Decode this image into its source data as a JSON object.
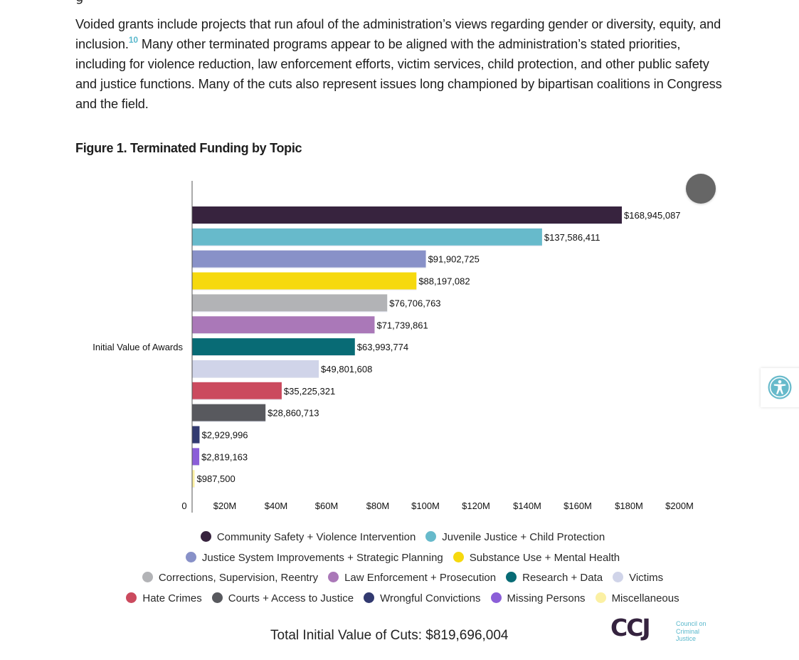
{
  "article": {
    "prev_text_fragment": "g",
    "paragraph_part1": "Voided grants include projects that run afoul of the administration’s views regarding gender or diversity, equity, and inclusion.",
    "footnote": "10",
    "paragraph_part2": " Many other terminated programs appear to be aligned with the administration’s stated priorities, including for violence reduction, law enforcement efforts, victim services, child protection, and other public safety and justice functions. Many of the cuts also represent issues long championed by bipartisan coalitions in Congress and the field."
  },
  "figure": {
    "title": "Figure 1. Terminated Funding by Topic",
    "total_label": "Total Initial Value of Cuts: $819,696,004",
    "logo": {
      "mark": "CCJ",
      "line1": "Council on",
      "line2": "Criminal",
      "line3": "Justice",
      "brand_color": "#35233f",
      "accent_color": "#5ab8cc"
    }
  },
  "chart_data": {
    "type": "bar",
    "orientation": "horizontal",
    "title": "Figure 1. Terminated Funding by Topic",
    "ylabel": "Initial Value of Awards",
    "xlabel": "",
    "xlim": [
      0,
      200000000
    ],
    "grid": false,
    "legend_position": "bottom",
    "x_ticks": [
      "0",
      "$20M",
      "$40M",
      "$60M",
      "$80M",
      "$100M",
      "$120M",
      "$140M",
      "$160M",
      "$180M",
      "$200M"
    ],
    "x_tick_values": [
      0,
      20000000,
      40000000,
      60000000,
      80000000,
      100000000,
      120000000,
      140000000,
      160000000,
      180000000,
      200000000
    ],
    "series": [
      {
        "name": "Community Safety + Violence Intervention",
        "value": 168945087,
        "label": "$168,945,087",
        "color": "#37233e"
      },
      {
        "name": "Juvenile Justice + Child Protection",
        "value": 137586411,
        "label": "$137,586,411",
        "color": "#67bacb"
      },
      {
        "name": "Justice System Improvements + Strategic Planning",
        "value": 91902725,
        "label": "$91,902,725",
        "color": "#8891c8"
      },
      {
        "name": "Substance Use + Mental Health",
        "value": 88197082,
        "label": "$88,197,082",
        "color": "#f6d90e"
      },
      {
        "name": "Corrections, Supervision, Reentry",
        "value": 76706763,
        "label": "$76,706,763",
        "color": "#b2b3b6"
      },
      {
        "name": "Law Enforcement + Prosecution",
        "value": 71739861,
        "label": "$71,739,861",
        "color": "#aa78b8"
      },
      {
        "name": "Research + Data",
        "value": 63993774,
        "label": "$63,993,774",
        "color": "#086b75"
      },
      {
        "name": "Victims",
        "value": 49801608,
        "label": "$49,801,608",
        "color": "#d0d4e9"
      },
      {
        "name": "Hate Crimes",
        "value": 35225321,
        "label": "$35,225,321",
        "color": "#cb4a5e"
      },
      {
        "name": "Courts + Access to Justice",
        "value": 28860713,
        "label": "$28,860,713",
        "color": "#58595e"
      },
      {
        "name": "Wrongful Convictions",
        "value": 2929996,
        "label": "$2,929,996",
        "color": "#323a70"
      },
      {
        "name": "Missing Persons",
        "value": 2819163,
        "label": "$2,819,163",
        "color": "#8b5ed8"
      },
      {
        "name": "Miscellaneous",
        "value": 987500,
        "label": "$987,500",
        "color": "#fbf0a3"
      }
    ]
  },
  "legend_rows": [
    [
      0,
      1
    ],
    [
      2,
      3
    ],
    [
      4,
      5,
      6,
      7
    ],
    [
      8,
      9,
      10,
      11,
      12
    ]
  ],
  "widgets": {
    "accessibility_button_label": "Accessibility options",
    "accessibility_color": "#67bacb"
  }
}
